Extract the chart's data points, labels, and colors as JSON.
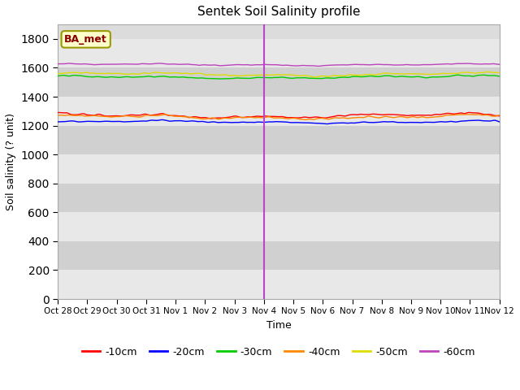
{
  "title": "Sentek Soil Salinity profile",
  "xlabel": "Time",
  "ylabel": "Soil salinity (? unit)",
  "ylim": [
    0,
    1900
  ],
  "yticks": [
    0,
    200,
    400,
    600,
    800,
    1000,
    1200,
    1400,
    1600,
    1800
  ],
  "legend_label": "BA_met",
  "bg_color": "#dcdcdc",
  "band_color_dark": "#d0d0d0",
  "band_color_light": "#e8e8e8",
  "series_order": [
    "-10cm",
    "-20cm",
    "-30cm",
    "-40cm",
    "-50cm",
    "-60cm"
  ],
  "series": {
    "-10cm": {
      "color": "#ff0000",
      "base": 1268,
      "noise_scale": 18
    },
    "-20cm": {
      "color": "#0000ff",
      "base": 1225,
      "noise_scale": 10
    },
    "-30cm": {
      "color": "#00cc00",
      "base": 1535,
      "noise_scale": 12
    },
    "-40cm": {
      "color": "#ff8800",
      "base": 1258,
      "noise_scale": 16
    },
    "-50cm": {
      "color": "#dddd00",
      "base": 1555,
      "noise_scale": 14
    },
    "-60cm": {
      "color": "#bb44bb",
      "base": 1622,
      "noise_scale": 8
    }
  },
  "x_tick_labels": [
    "Oct 28",
    "Oct 29",
    "Oct 30",
    "Oct 31",
    "Nov 1",
    "Nov 2",
    "Nov 3",
    "Nov 4",
    "Nov 5",
    "Nov 6",
    "Nov 7",
    "Nov 8",
    "Nov 9",
    "Nov 10",
    "Nov 11",
    "Nov 12"
  ],
  "n_points": 400,
  "vline_color": "#bb44cc",
  "vline_x": 7.0,
  "figsize": [
    6.4,
    4.8
  ],
  "dpi": 100
}
